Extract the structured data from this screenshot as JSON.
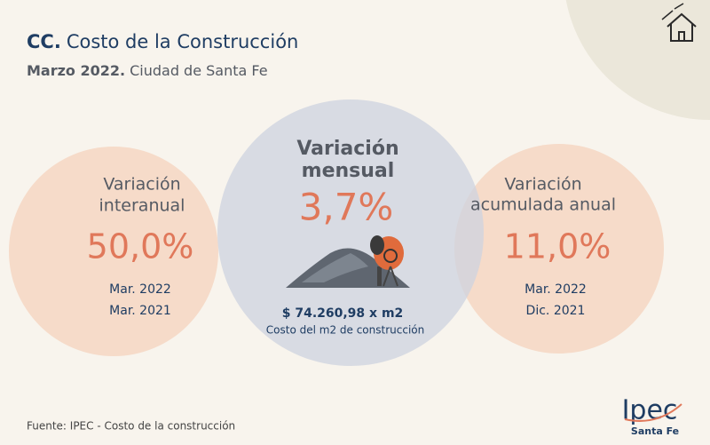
{
  "header": {
    "title_prefix": "CC.",
    "title": "Costo de la Construcción",
    "subtitle_prefix": "Marzo 2022.",
    "subtitle": "Ciudad de Santa Fe"
  },
  "indicators": [
    {
      "label_lines": [
        "Variación",
        "interanual"
      ],
      "value": "50,0%",
      "periods": [
        "Mar. 2022",
        "Mar. 2021"
      ]
    },
    {
      "label_lines": [
        "Variación",
        "mensual"
      ],
      "value": "3,7%",
      "price": "$ 74.260,98 x m2",
      "price_caption": "Costo del m2 de construcción"
    },
    {
      "label_lines": [
        "Variación",
        "acumulada anual"
      ],
      "value": "11,0%",
      "periods": [
        "Mar. 2022",
        "Dic. 2021"
      ]
    }
  ],
  "footer": {
    "source": "Fuente: IPEC - Costo de la construcción",
    "logo": "Ipec",
    "logo_subtitle": "Santa Fe"
  }
}
